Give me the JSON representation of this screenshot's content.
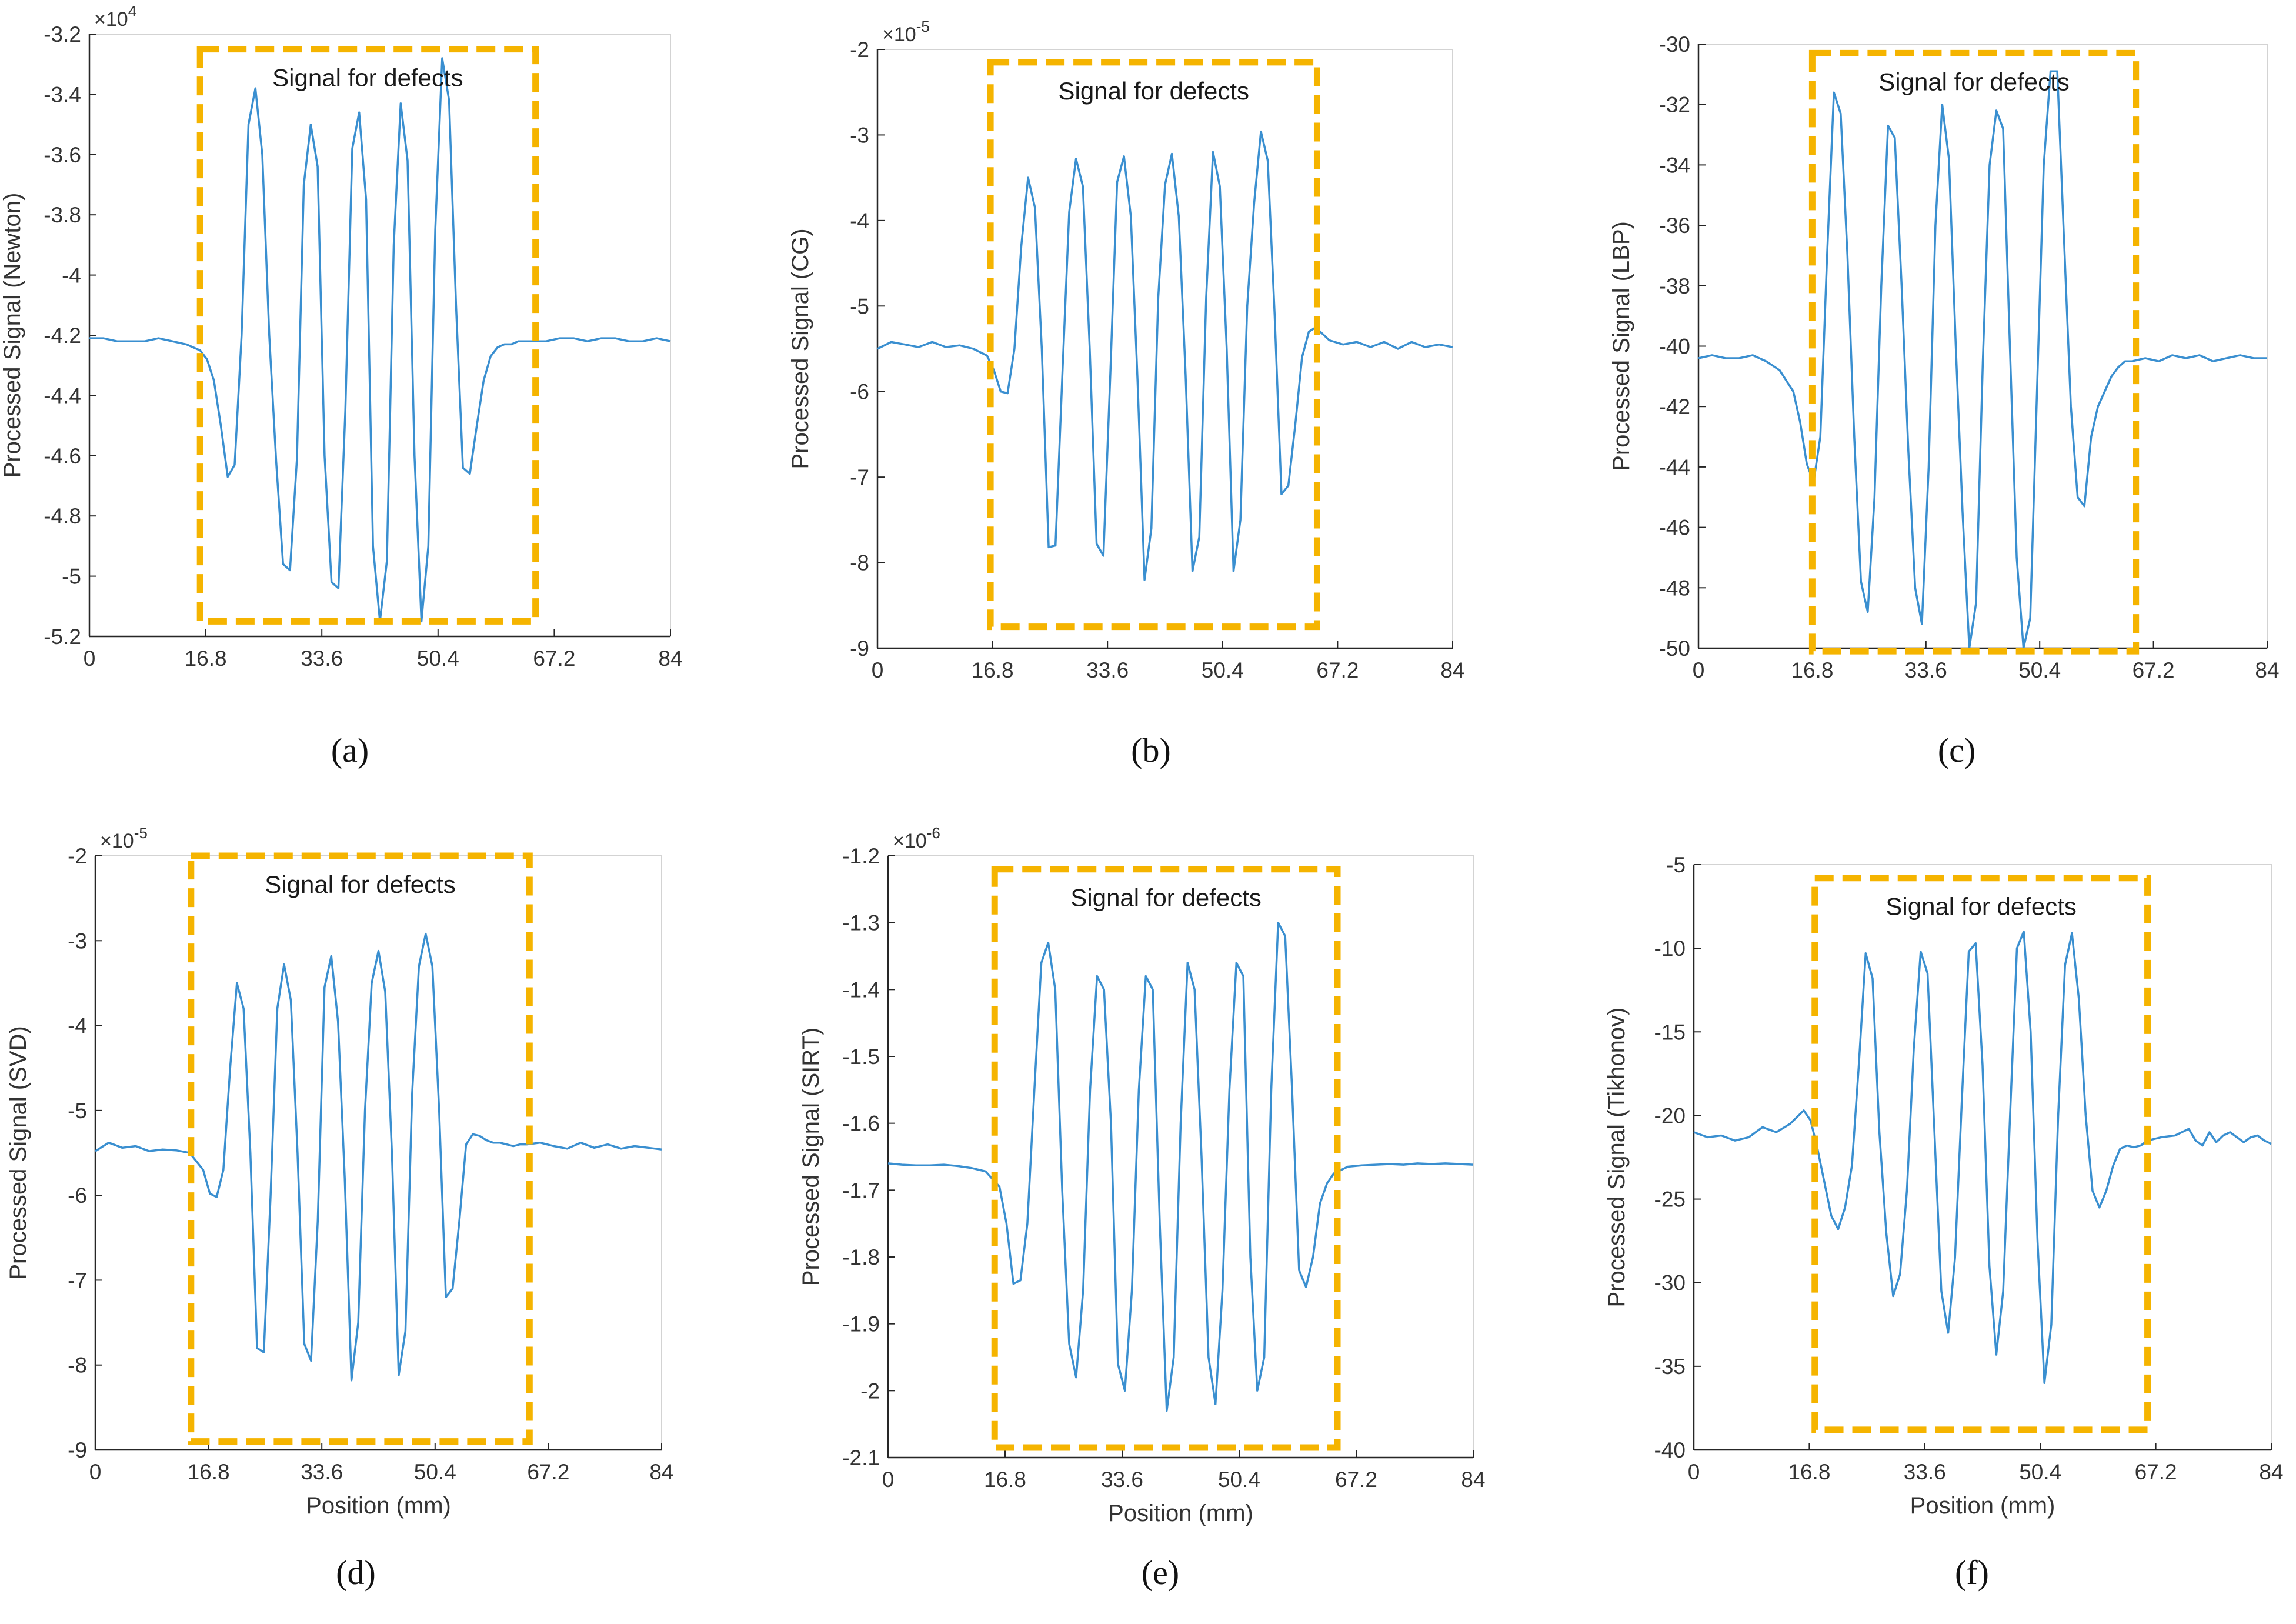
{
  "colors": {
    "line": "#3A8FD0",
    "box": "#F5B400",
    "axis": "#262626",
    "frame": "#D3D3D3",
    "text": "#333333",
    "background": "#ffffff"
  },
  "chart_data": [
    {
      "type": "line",
      "caption": "(a)",
      "ylabel": "Processed Signal (Newton)",
      "xlabel": "",
      "exponent_base": "×10",
      "exponent_power": "4",
      "xlim": [
        0,
        84
      ],
      "ylim": [
        -5.2,
        -3.2
      ],
      "xticks": [
        "0",
        "16.8",
        "33.6",
        "50.4",
        "67.2",
        "84"
      ],
      "yticks": [
        "-3.2",
        "-3.4",
        "-3.6",
        "-3.8",
        "-4",
        "-4.2",
        "-4.4",
        "-4.6",
        "-4.8",
        "-5",
        "-5.2"
      ],
      "annotation": {
        "text": "Signal for defects",
        "x_range": [
          16.0,
          64.5
        ],
        "y_range": [
          -5.15,
          -3.25
        ]
      },
      "series": [
        {
          "x": [
            0,
            2,
            4,
            6,
            8,
            10,
            12,
            14,
            15,
            16,
            17,
            18,
            19,
            20,
            21,
            22,
            23,
            24,
            25,
            26,
            27,
            28,
            29,
            30,
            31,
            32,
            33,
            34,
            35,
            36,
            37,
            38,
            39,
            40,
            41,
            42,
            43,
            44,
            45,
            46,
            47,
            48,
            49,
            50,
            51,
            52,
            53,
            54,
            55,
            56,
            57,
            58,
            59,
            60,
            61,
            62,
            63,
            64,
            65,
            66,
            68,
            70,
            72,
            74,
            76,
            78,
            80,
            82,
            84
          ],
          "y": [
            -4.21,
            -4.21,
            -4.22,
            -4.22,
            -4.22,
            -4.21,
            -4.22,
            -4.23,
            -4.24,
            -4.25,
            -4.28,
            -4.35,
            -4.5,
            -4.67,
            -4.63,
            -4.2,
            -3.5,
            -3.38,
            -3.6,
            -4.2,
            -4.62,
            -4.96,
            -4.98,
            -4.61,
            -3.7,
            -3.5,
            -3.64,
            -4.6,
            -5.02,
            -5.04,
            -4.45,
            -3.58,
            -3.46,
            -3.75,
            -4.9,
            -5.15,
            -4.95,
            -3.9,
            -3.43,
            -3.62,
            -4.6,
            -5.15,
            -4.9,
            -3.85,
            -3.28,
            -3.42,
            -4.1,
            -4.64,
            -4.66,
            -4.5,
            -4.35,
            -4.27,
            -4.24,
            -4.23,
            -4.23,
            -4.22,
            -4.22,
            -4.22,
            -4.22,
            -4.22,
            -4.21,
            -4.21,
            -4.22,
            -4.21,
            -4.21,
            -4.22,
            -4.22,
            -4.21,
            -4.22
          ]
        }
      ]
    },
    {
      "type": "line",
      "caption": "(b)",
      "ylabel": "Processed Signal (CG)",
      "xlabel": "",
      "exponent_base": "×10",
      "exponent_power": "-5",
      "xlim": [
        0,
        84
      ],
      "ylim": [
        -9,
        -2
      ],
      "xticks": [
        "0",
        "16.8",
        "33.6",
        "50.4",
        "67.2",
        "84"
      ],
      "yticks": [
        "-2",
        "-3",
        "-4",
        "-5",
        "-6",
        "-7",
        "-8",
        "-9"
      ],
      "annotation": {
        "text": "Signal for defects",
        "x_range": [
          16.5,
          64.2
        ],
        "y_range": [
          -8.75,
          -2.15
        ]
      },
      "series": [
        {
          "x": [
            0,
            2,
            4,
            6,
            8,
            10,
            12,
            14,
            16,
            17,
            18,
            19,
            20,
            21,
            22,
            23,
            24,
            25,
            26,
            27,
            28,
            29,
            30,
            31,
            32,
            33,
            34,
            35,
            36,
            37,
            38,
            39,
            40,
            41,
            42,
            43,
            44,
            45,
            46,
            47,
            48,
            49,
            50,
            51,
            52,
            53,
            54,
            55,
            56,
            57,
            58,
            59,
            60,
            61,
            62,
            63,
            64,
            66,
            68,
            70,
            72,
            74,
            76,
            78,
            80,
            82,
            84
          ],
          "y": [
            -5.5,
            -5.42,
            -5.45,
            -5.48,
            -5.42,
            -5.48,
            -5.46,
            -5.5,
            -5.58,
            -5.75,
            -6.0,
            -6.02,
            -5.5,
            -4.3,
            -3.5,
            -3.85,
            -5.5,
            -7.82,
            -7.8,
            -5.8,
            -3.9,
            -3.28,
            -3.6,
            -5.5,
            -7.78,
            -7.92,
            -5.8,
            -3.55,
            -3.25,
            -3.95,
            -5.9,
            -8.2,
            -7.6,
            -4.9,
            -3.58,
            -3.22,
            -3.95,
            -5.8,
            -8.1,
            -7.7,
            -4.9,
            -3.2,
            -3.6,
            -5.5,
            -8.1,
            -7.5,
            -5.0,
            -3.8,
            -2.96,
            -3.3,
            -5.1,
            -7.2,
            -7.1,
            -6.4,
            -5.6,
            -5.3,
            -5.25,
            -5.4,
            -5.45,
            -5.42,
            -5.48,
            -5.42,
            -5.5,
            -5.42,
            -5.48,
            -5.45,
            -5.48
          ]
        }
      ]
    },
    {
      "type": "line",
      "caption": "(c)",
      "ylabel": "Processed Signal (LBP)",
      "xlabel": "",
      "exponent_base": "",
      "exponent_power": "",
      "xlim": [
        0,
        84
      ],
      "ylim": [
        -50,
        -30
      ],
      "xticks": [
        "0",
        "16.8",
        "33.6",
        "50.4",
        "67.2",
        "84"
      ],
      "yticks": [
        "-30",
        "-32",
        "-34",
        "-36",
        "-38",
        "-40",
        "-42",
        "-44",
        "-46",
        "-48",
        "-50"
      ],
      "annotation": {
        "text": "Signal for defects",
        "x_range": [
          16.8,
          64.6
        ],
        "y_range": [
          -50.1,
          -30.3
        ]
      },
      "series": [
        {
          "x": [
            0,
            2,
            4,
            6,
            8,
            10,
            12,
            14,
            15,
            16,
            17,
            18,
            19,
            20,
            21,
            22,
            23,
            24,
            25,
            26,
            27,
            28,
            29,
            30,
            31,
            32,
            33,
            34,
            35,
            36,
            37,
            38,
            39,
            40,
            41,
            42,
            43,
            44,
            45,
            46,
            47,
            48,
            49,
            50,
            51,
            52,
            53,
            54,
            55,
            56,
            57,
            58,
            59,
            60,
            61,
            62,
            63,
            64,
            66,
            68,
            70,
            72,
            74,
            76,
            78,
            80,
            82,
            84
          ],
          "y": [
            -40.4,
            -40.3,
            -40.4,
            -40.4,
            -40.3,
            -40.5,
            -40.8,
            -41.5,
            -42.5,
            -43.9,
            -44.5,
            -43.0,
            -37.0,
            -31.6,
            -32.3,
            -37.0,
            -43.0,
            -47.8,
            -48.8,
            -45.0,
            -38.0,
            -32.7,
            -33.1,
            -38.0,
            -43.5,
            -48.0,
            -49.2,
            -44.0,
            -36.0,
            -32.0,
            -33.8,
            -40.0,
            -45.5,
            -50.0,
            -48.5,
            -40.5,
            -34.0,
            -32.2,
            -32.8,
            -40.0,
            -47.0,
            -50.0,
            -49.0,
            -41.5,
            -34.0,
            -30.9,
            -30.9,
            -36.5,
            -42.0,
            -45.0,
            -45.3,
            -43.0,
            -42.0,
            -41.5,
            -41.0,
            -40.7,
            -40.5,
            -40.5,
            -40.4,
            -40.5,
            -40.3,
            -40.4,
            -40.3,
            -40.5,
            -40.4,
            -40.3,
            -40.4,
            -40.4
          ]
        }
      ]
    },
    {
      "type": "line",
      "caption": "(d)",
      "ylabel": "Processed Signal (SVD)",
      "xlabel": "Position (mm)",
      "exponent_base": "×10",
      "exponent_power": "-5",
      "xlim": [
        0,
        84
      ],
      "ylim": [
        -9,
        -2
      ],
      "xticks": [
        "0",
        "16.8",
        "33.6",
        "50.4",
        "67.2",
        "84"
      ],
      "yticks": [
        "-2",
        "-3",
        "-4",
        "-5",
        "-6",
        "-7",
        "-8",
        "-9"
      ],
      "annotation": {
        "text": "Signal for defects",
        "x_range": [
          14.2,
          64.4
        ],
        "y_range": [
          -8.9,
          -2.0
        ]
      },
      "series": [
        {
          "x": [
            0,
            2,
            4,
            6,
            8,
            10,
            12,
            14,
            16,
            17,
            18,
            19,
            20,
            21,
            22,
            23,
            24,
            25,
            26,
            27,
            28,
            29,
            30,
            31,
            32,
            33,
            34,
            35,
            36,
            37,
            38,
            39,
            40,
            41,
            42,
            43,
            44,
            45,
            46,
            47,
            48,
            49,
            50,
            51,
            52,
            53,
            54,
            55,
            56,
            57,
            58,
            59,
            60,
            61,
            62,
            63,
            64,
            66,
            68,
            70,
            72,
            74,
            76,
            78,
            80,
            82,
            84
          ],
          "y": [
            -5.48,
            -5.38,
            -5.44,
            -5.42,
            -5.48,
            -5.46,
            -5.47,
            -5.5,
            -5.7,
            -5.98,
            -6.02,
            -5.7,
            -4.5,
            -3.5,
            -3.8,
            -5.5,
            -7.8,
            -7.85,
            -6.0,
            -3.8,
            -3.28,
            -3.7,
            -5.5,
            -7.75,
            -7.95,
            -6.3,
            -3.55,
            -3.18,
            -3.95,
            -5.8,
            -8.18,
            -7.5,
            -5.0,
            -3.5,
            -3.12,
            -3.6,
            -5.5,
            -8.12,
            -7.6,
            -4.8,
            -3.3,
            -2.92,
            -3.3,
            -5.0,
            -7.2,
            -7.1,
            -6.3,
            -5.4,
            -5.28,
            -5.3,
            -5.35,
            -5.38,
            -5.38,
            -5.4,
            -5.42,
            -5.4,
            -5.4,
            -5.38,
            -5.42,
            -5.45,
            -5.38,
            -5.44,
            -5.4,
            -5.45,
            -5.42,
            -5.44,
            -5.46
          ]
        }
      ]
    },
    {
      "type": "line",
      "caption": "(e)",
      "ylabel": "Processed Signal (SIRT)",
      "xlabel": "Position (mm)",
      "exponent_base": "×10",
      "exponent_power": "-6",
      "xlim": [
        0,
        84
      ],
      "ylim": [
        -2.1,
        -1.2
      ],
      "xticks": [
        "0",
        "16.8",
        "33.6",
        "50.4",
        "67.2",
        "84"
      ],
      "yticks": [
        "-1.2",
        "-1.3",
        "-1.4",
        "-1.5",
        "-1.6",
        "-1.7",
        "-1.8",
        "-1.9",
        "-2",
        "-2.1"
      ],
      "annotation": {
        "text": "Signal for defects",
        "x_range": [
          15.3,
          64.5
        ],
        "y_range": [
          -2.085,
          -1.22
        ]
      },
      "series": [
        {
          "x": [
            0,
            2,
            4,
            6,
            8,
            10,
            12,
            14,
            16,
            17,
            18,
            19,
            20,
            21,
            22,
            23,
            24,
            25,
            26,
            27,
            28,
            29,
            30,
            31,
            32,
            33,
            34,
            35,
            36,
            37,
            38,
            39,
            40,
            41,
            42,
            43,
            44,
            45,
            46,
            47,
            48,
            49,
            50,
            51,
            52,
            53,
            54,
            55,
            56,
            57,
            58,
            59,
            60,
            61,
            62,
            63,
            64,
            66,
            68,
            70,
            72,
            74,
            76,
            78,
            80,
            82,
            84
          ],
          "y": [
            -1.66,
            -1.662,
            -1.663,
            -1.663,
            -1.662,
            -1.664,
            -1.667,
            -1.672,
            -1.695,
            -1.75,
            -1.84,
            -1.835,
            -1.75,
            -1.55,
            -1.36,
            -1.33,
            -1.4,
            -1.7,
            -1.93,
            -1.98,
            -1.85,
            -1.55,
            -1.38,
            -1.4,
            -1.6,
            -1.96,
            -2.0,
            -1.85,
            -1.55,
            -1.38,
            -1.4,
            -1.75,
            -2.03,
            -1.95,
            -1.6,
            -1.36,
            -1.4,
            -1.65,
            -1.95,
            -2.02,
            -1.85,
            -1.55,
            -1.36,
            -1.38,
            -1.8,
            -2.0,
            -1.95,
            -1.55,
            -1.3,
            -1.32,
            -1.55,
            -1.82,
            -1.845,
            -1.8,
            -1.72,
            -1.69,
            -1.675,
            -1.665,
            -1.663,
            -1.662,
            -1.661,
            -1.662,
            -1.66,
            -1.661,
            -1.66,
            -1.661,
            -1.662
          ]
        }
      ]
    },
    {
      "type": "line",
      "caption": "(f)",
      "ylabel": "Processed Signal (Tikhonov)",
      "xlabel": "Position (mm)",
      "exponent_base": "",
      "exponent_power": "",
      "xlim": [
        0,
        84
      ],
      "ylim": [
        -40,
        -5
      ],
      "xticks": [
        "0",
        "16.8",
        "33.6",
        "50.4",
        "67.2",
        "84"
      ],
      "yticks": [
        "-5",
        "-10",
        "-15",
        "-20",
        "-25",
        "-30",
        "-35",
        "-40"
      ],
      "annotation": {
        "text": "Signal for defects",
        "x_range": [
          17.6,
          66.0
        ],
        "y_range": [
          -38.8,
          -5.8
        ]
      },
      "series": [
        {
          "x": [
            0,
            2,
            4,
            6,
            8,
            10,
            12,
            14,
            16,
            17,
            18,
            19,
            20,
            21,
            22,
            23,
            24,
            25,
            26,
            27,
            28,
            29,
            30,
            31,
            32,
            33,
            34,
            35,
            36,
            37,
            38,
            39,
            40,
            41,
            42,
            43,
            44,
            45,
            46,
            47,
            48,
            49,
            50,
            51,
            52,
            53,
            54,
            55,
            56,
            57,
            58,
            59,
            60,
            61,
            62,
            63,
            64,
            65,
            66,
            68,
            70,
            72,
            73,
            74,
            75,
            76,
            77,
            78,
            79,
            80,
            81,
            82,
            83,
            84
          ],
          "y": [
            -21.0,
            -21.3,
            -21.2,
            -21.5,
            -21.3,
            -20.7,
            -21.0,
            -20.5,
            -19.7,
            -20.3,
            -22.0,
            -24.0,
            -26.0,
            -26.8,
            -25.5,
            -23.0,
            -17.0,
            -10.3,
            -11.8,
            -21.0,
            -27.0,
            -30.8,
            -29.5,
            -24.5,
            -16.0,
            -10.2,
            -11.5,
            -21.0,
            -30.5,
            -33.0,
            -28.5,
            -19.0,
            -10.2,
            -9.7,
            -17.0,
            -29.0,
            -34.3,
            -30.5,
            -20.0,
            -10.0,
            -9.0,
            -15.0,
            -27.5,
            -36.0,
            -32.5,
            -20.0,
            -11.0,
            -9.1,
            -13.0,
            -20.0,
            -24.5,
            -25.5,
            -24.5,
            -23.0,
            -22.0,
            -21.8,
            -21.9,
            -21.8,
            -21.5,
            -21.3,
            -21.2,
            -20.8,
            -21.5,
            -21.8,
            -21.0,
            -21.6,
            -21.2,
            -21.0,
            -21.3,
            -21.6,
            -21.3,
            -21.2,
            -21.5,
            -21.7
          ]
        }
      ]
    }
  ]
}
